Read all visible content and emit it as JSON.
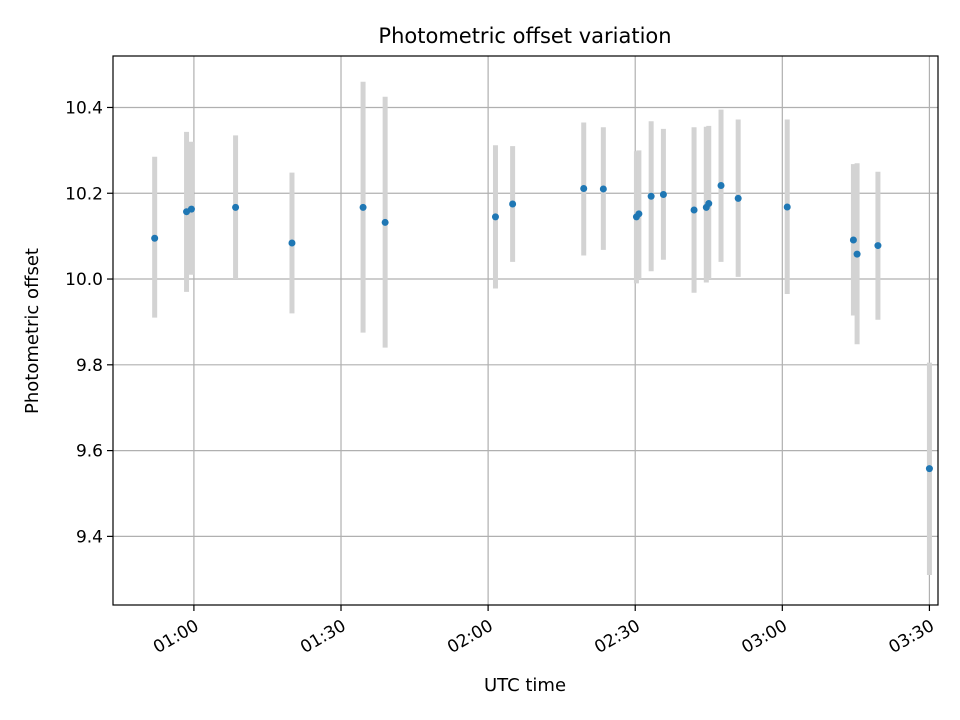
{
  "chart_data": {
    "type": "scatter",
    "title": "Photometric offset variation",
    "xlabel": "UTC time",
    "ylabel": "Photometric offset",
    "xlim": [
      "00:43:30",
      "03:31:45"
    ],
    "ylim": [
      9.24,
      10.52
    ],
    "grid": true,
    "x_ticks": [
      "01:00",
      "01:30",
      "02:00",
      "02:30",
      "03:00",
      "03:30"
    ],
    "y_ticks": [
      "9.4",
      "9.6",
      "9.8",
      "10.0",
      "10.2",
      "10.4"
    ],
    "point_color": "#1f77b4",
    "errorbar_color": "#d3d3d3",
    "points": [
      {
        "t": "00:52:00",
        "y": 10.095,
        "lo": 9.91,
        "hi": 10.285
      },
      {
        "t": "00:58:30",
        "y": 10.157,
        "lo": 9.97,
        "hi": 10.343
      },
      {
        "t": "00:59:30",
        "y": 10.163,
        "lo": 10.01,
        "hi": 10.32
      },
      {
        "t": "01:08:30",
        "y": 10.167,
        "lo": 10.0,
        "hi": 10.335
      },
      {
        "t": "01:20:00",
        "y": 10.084,
        "lo": 9.92,
        "hi": 10.248
      },
      {
        "t": "01:34:30",
        "y": 10.167,
        "lo": 9.875,
        "hi": 10.46
      },
      {
        "t": "01:39:00",
        "y": 10.132,
        "lo": 9.84,
        "hi": 10.425
      },
      {
        "t": "02:01:30",
        "y": 10.145,
        "lo": 9.978,
        "hi": 10.312
      },
      {
        "t": "02:05:00",
        "y": 10.175,
        "lo": 10.04,
        "hi": 10.31
      },
      {
        "t": "02:19:30",
        "y": 10.211,
        "lo": 10.055,
        "hi": 10.365
      },
      {
        "t": "02:23:30",
        "y": 10.21,
        "lo": 10.068,
        "hi": 10.354
      },
      {
        "t": "02:30:15",
        "y": 10.145,
        "lo": 9.99,
        "hi": 10.298
      },
      {
        "t": "02:30:45",
        "y": 10.152,
        "lo": 10.0,
        "hi": 10.3
      },
      {
        "t": "02:33:15",
        "y": 10.193,
        "lo": 10.018,
        "hi": 10.368
      },
      {
        "t": "02:35:45",
        "y": 10.197,
        "lo": 10.045,
        "hi": 10.35
      },
      {
        "t": "02:42:00",
        "y": 10.161,
        "lo": 9.968,
        "hi": 10.354
      },
      {
        "t": "02:44:30",
        "y": 10.167,
        "lo": 9.992,
        "hi": 10.355
      },
      {
        "t": "02:45:00",
        "y": 10.176,
        "lo": 10.0,
        "hi": 10.357
      },
      {
        "t": "02:47:30",
        "y": 10.218,
        "lo": 10.04,
        "hi": 10.395
      },
      {
        "t": "02:51:00",
        "y": 10.188,
        "lo": 10.005,
        "hi": 10.372
      },
      {
        "t": "03:01:00",
        "y": 10.168,
        "lo": 9.965,
        "hi": 10.372
      },
      {
        "t": "03:14:30",
        "y": 10.091,
        "lo": 9.915,
        "hi": 10.268
      },
      {
        "t": "03:15:15",
        "y": 10.058,
        "lo": 9.848,
        "hi": 10.27
      },
      {
        "t": "03:19:30",
        "y": 10.078,
        "lo": 9.905,
        "hi": 10.25
      },
      {
        "t": "03:30:00",
        "y": 9.558,
        "lo": 9.31,
        "hi": 9.805
      }
    ]
  }
}
